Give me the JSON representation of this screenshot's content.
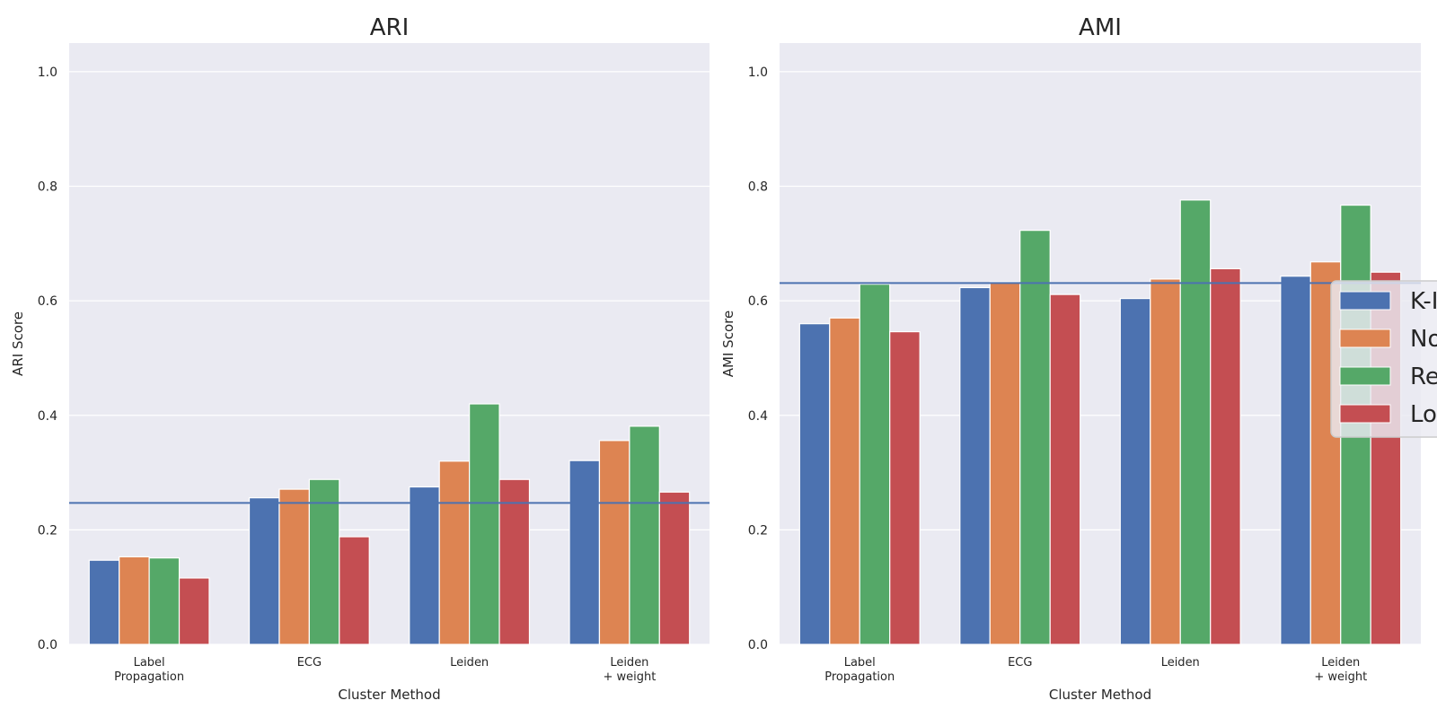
{
  "chart_data": [
    {
      "type": "bar",
      "title": "ARI",
      "xlabel": "Cluster Method",
      "ylabel": "ARI Score",
      "ylim": [
        0,
        1.05
      ],
      "yticks": [
        "0.0",
        "0.2",
        "0.4",
        "0.6",
        "0.8",
        "1.0"
      ],
      "categories": [
        [
          "Label",
          "Propagation"
        ],
        [
          "ECG"
        ],
        [
          "Leiden"
        ],
        [
          "Leiden",
          "+ weight"
        ]
      ],
      "series": [
        {
          "color": "#4c72b0",
          "values": [
            0.147,
            0.256,
            0.275,
            0.321
          ]
        },
        {
          "color": "#dd8452",
          "values": [
            0.153,
            0.271,
            0.32,
            0.356
          ]
        },
        {
          "color": "#55a868",
          "values": [
            0.151,
            0.288,
            0.42,
            0.381
          ]
        },
        {
          "color": "#c44e52",
          "values": [
            0.116,
            0.188,
            0.288,
            0.266
          ]
        }
      ],
      "reference_line": {
        "value": 0.247,
        "color": "#4c72b0"
      },
      "grid": true,
      "legend": null
    },
    {
      "type": "bar",
      "title": "AMI",
      "xlabel": "Cluster Method",
      "ylabel": "AMI Score",
      "ylim": [
        0,
        1.05
      ],
      "yticks": [
        "0.0",
        "0.2",
        "0.4",
        "0.6",
        "0.8",
        "1.0"
      ],
      "categories": [
        [
          "Label",
          "Propagation"
        ],
        [
          "ECG"
        ],
        [
          "Leiden"
        ],
        [
          "Leiden",
          "+ weight"
        ]
      ],
      "series": [
        {
          "color": "#4c72b0",
          "values": [
            0.56,
            0.623,
            0.604,
            0.643
          ]
        },
        {
          "color": "#dd8452",
          "values": [
            0.57,
            0.633,
            0.638,
            0.668
          ]
        },
        {
          "color": "#55a868",
          "values": [
            0.629,
            0.723,
            0.776,
            0.767
          ]
        },
        {
          "color": "#c44e52",
          "values": [
            0.546,
            0.611,
            0.656,
            0.65
          ]
        }
      ],
      "reference_line": {
        "value": 0.631,
        "color": "#4c72b0"
      },
      "grid": true,
      "legend": {
        "placement": "right (clipped)",
        "labels": [
          "K-I",
          "No",
          "Re",
          "Lo"
        ]
      }
    }
  ],
  "style": {
    "plot_bg": "#eaeaf2",
    "grid": "#ffffff",
    "text": "#262626"
  }
}
